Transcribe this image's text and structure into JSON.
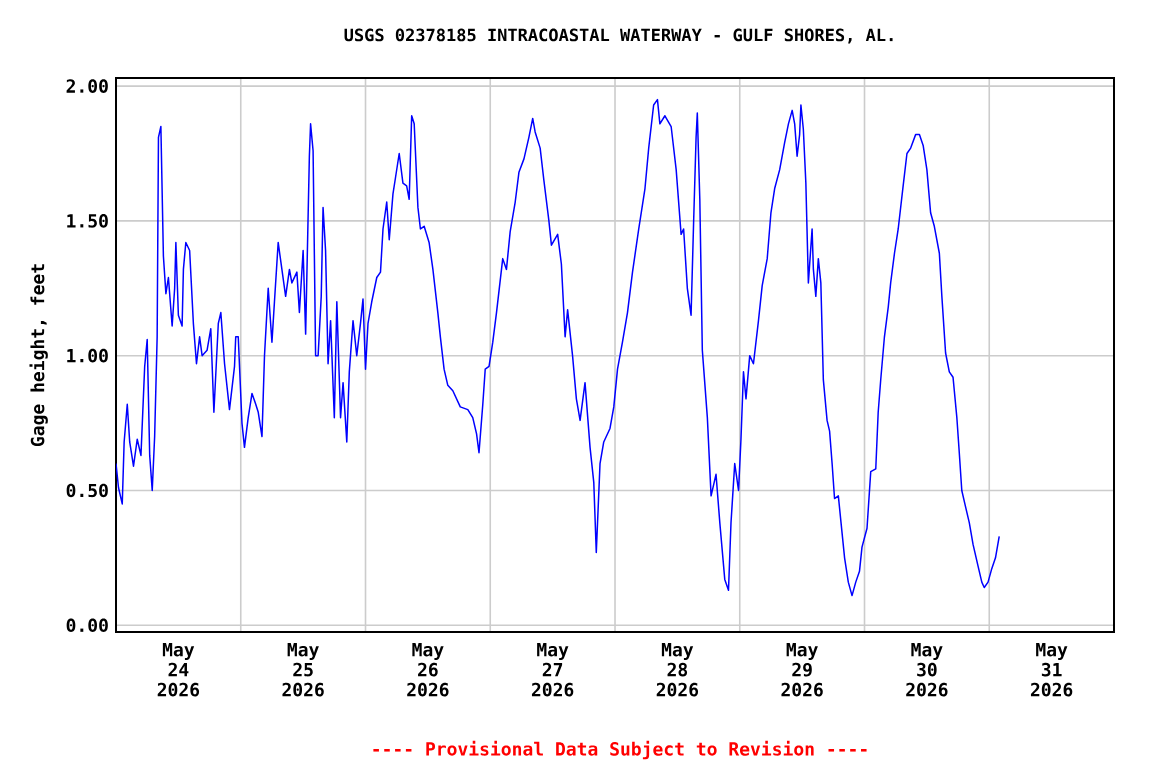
{
  "chart_data": {
    "type": "line",
    "title": "USGS 02378185 INTRACOASTAL WATERWAY - GULF SHORES, AL.",
    "ylabel": "Gage height, feet",
    "annotations": [
      "---- Provisional Data Subject to Revision ----"
    ],
    "xlim": [
      "2026-05-24",
      "2026-06-01"
    ],
    "xticks": [
      {
        "value": "2026-05-25",
        "label": null
      },
      {
        "value": "2026-05-26",
        "label": null
      },
      {
        "value": "2026-05-27",
        "label": null
      },
      {
        "value": "2026-05-28",
        "label": null
      },
      {
        "value": "2026-05-29",
        "label": null
      },
      {
        "value": "2026-05-30",
        "label": null
      },
      {
        "value": "2026-05-31",
        "label": null
      },
      {
        "value": "2026-05-24T12:00",
        "label": "May 24 2026"
      },
      {
        "value": "2026-05-25T12:00",
        "label": "May 25 2026"
      },
      {
        "value": "2026-05-26T12:00",
        "label": "May 26 2026"
      },
      {
        "value": "2026-05-27T12:00",
        "label": "May 27 2026"
      },
      {
        "value": "2026-05-28T12:00",
        "label": "May 28 2026"
      },
      {
        "value": "2026-05-29T12:00",
        "label": "May 29 2026"
      },
      {
        "value": "2026-05-30T12:00",
        "label": "May 30 2026"
      },
      {
        "value": "2026-05-31T12:00",
        "label": "May 31 2026"
      }
    ],
    "ylim": [
      -0.025,
      2.03
    ],
    "yticks": [
      {
        "value": 0,
        "label": "0.00"
      },
      {
        "value": 0.5,
        "label": "0.50"
      },
      {
        "value": 1,
        "label": "1.00"
      },
      {
        "value": 1.5,
        "label": "1.50"
      },
      {
        "value": 2,
        "label": "2.00"
      }
    ],
    "grid": true,
    "series": [
      {
        "color": "#0000ff",
        "x": [
          "2026-05-24T00:00",
          "2026-05-24T00:29",
          "2026-05-24T01:12",
          "2026-05-24T01:34",
          "2026-05-24T02:10",
          "2026-05-24T02:38",
          "2026-05-24T03:22",
          "2026-05-24T04:05",
          "2026-05-24T04:48",
          "2026-05-24T05:31",
          "2026-05-24T06:00",
          "2026-05-24T06:29",
          "2026-05-24T06:58",
          "2026-05-24T07:26",
          "2026-05-24T07:55",
          "2026-05-24T08:10",
          "2026-05-24T08:38",
          "2026-05-24T09:07",
          "2026-05-24T09:36",
          "2026-05-24T10:05",
          "2026-05-24T10:48",
          "2026-05-24T11:17",
          "2026-05-24T11:31",
          "2026-05-24T12:00",
          "2026-05-24T12:43",
          "2026-05-24T12:58",
          "2026-05-24T13:26",
          "2026-05-24T14:10",
          "2026-05-24T14:53",
          "2026-05-24T15:29",
          "2026-05-24T16:05",
          "2026-05-24T16:34",
          "2026-05-24T17:31",
          "2026-05-24T18:14",
          "2026-05-24T18:50",
          "2026-05-24T19:41",
          "2026-05-24T20:10",
          "2026-05-24T20:53",
          "2026-05-24T21:50",
          "2026-05-24T22:48",
          "2026-05-24T23:02",
          "2026-05-24T23:31",
          "2026-05-25T00:14",
          "2026-05-25T00:43",
          "2026-05-25T01:26",
          "2026-05-25T02:10",
          "2026-05-25T02:53",
          "2026-05-25T03:22",
          "2026-05-25T04:05",
          "2026-05-25T04:34",
          "2026-05-25T05:17",
          "2026-05-25T06:00",
          "2026-05-25T06:29",
          "2026-05-25T07:12",
          "2026-05-25T07:55",
          "2026-05-25T08:38",
          "2026-05-25T09:22",
          "2026-05-25T09:50",
          "2026-05-25T10:48",
          "2026-05-25T11:17",
          "2026-05-25T12:00",
          "2026-05-25T12:29",
          "2026-05-25T13:12",
          "2026-05-25T13:26",
          "2026-05-25T13:55",
          "2026-05-25T14:24",
          "2026-05-25T14:53",
          "2026-05-25T15:29",
          "2026-05-25T15:50",
          "2026-05-25T16:19",
          "2026-05-25T16:48",
          "2026-05-25T17:17",
          "2026-05-25T18:00",
          "2026-05-25T18:29",
          "2026-05-25T19:12",
          "2026-05-25T19:41",
          "2026-05-25T20:24",
          "2026-05-25T20:53",
          "2026-05-25T21:36",
          "2026-05-25T22:19",
          "2026-05-25T23:02",
          "2026-05-25T23:31",
          "2026-05-26T00:00",
          "2026-05-26T00:29",
          "2026-05-26T01:12",
          "2026-05-26T02:10",
          "2026-05-26T02:53",
          "2026-05-26T03:22",
          "2026-05-26T04:05",
          "2026-05-26T04:34",
          "2026-05-26T05:17",
          "2026-05-26T05:46",
          "2026-05-26T06:29",
          "2026-05-26T07:12",
          "2026-05-26T07:55",
          "2026-05-26T08:24",
          "2026-05-26T08:53",
          "2026-05-26T09:22",
          "2026-05-26T10:05",
          "2026-05-26T10:34",
          "2026-05-26T11:17",
          "2026-05-26T12:14",
          "2026-05-26T12:58",
          "2026-05-26T13:55",
          "2026-05-26T14:24",
          "2026-05-26T15:07",
          "2026-05-26T15:50",
          "2026-05-26T16:48",
          "2026-05-26T18:14",
          "2026-05-26T19:41",
          "2026-05-26T20:38",
          "2026-05-26T21:22",
          "2026-05-26T21:50",
          "2026-05-26T22:34",
          "2026-05-26T23:02",
          "2026-05-26T23:46",
          "2026-05-27T00:29",
          "2026-05-27T01:12",
          "2026-05-27T02:24",
          "2026-05-27T03:07",
          "2026-05-27T03:50",
          "2026-05-27T04:48",
          "2026-05-27T05:31",
          "2026-05-27T06:29",
          "2026-05-27T07:26",
          "2026-05-27T08:10",
          "2026-05-27T08:38",
          "2026-05-27T09:36",
          "2026-05-27T10:19",
          "2026-05-27T11:17",
          "2026-05-27T11:46",
          "2026-05-27T12:58",
          "2026-05-27T13:41",
          "2026-05-27T14:24",
          "2026-05-27T14:53",
          "2026-05-27T15:50",
          "2026-05-27T16:34",
          "2026-05-27T17:17",
          "2026-05-27T18:14",
          "2026-05-27T19:12",
          "2026-05-27T19:55",
          "2026-05-27T20:24",
          "2026-05-27T21:07",
          "2026-05-27T21:50",
          "2026-05-27T23:02",
          "2026-05-27T23:46",
          "2026-05-28T00:29",
          "2026-05-28T01:26",
          "2026-05-28T02:24",
          "2026-05-28T03:22",
          "2026-05-28T04:34",
          "2026-05-28T05:46",
          "2026-05-28T06:29",
          "2026-05-28T07:26",
          "2026-05-28T08:10",
          "2026-05-28T08:38",
          "2026-05-28T09:36",
          "2026-05-28T10:48",
          "2026-05-28T11:46",
          "2026-05-28T12:43",
          "2026-05-28T13:12",
          "2026-05-28T13:55",
          "2026-05-28T14:38",
          "2026-05-28T15:07",
          "2026-05-28T15:36",
          "2026-05-28T15:50",
          "2026-05-28T16:19",
          "2026-05-28T16:48",
          "2026-05-28T17:46",
          "2026-05-28T18:29",
          "2026-05-28T19:26",
          "2026-05-28T20:10",
          "2026-05-28T21:07",
          "2026-05-28T21:50",
          "2026-05-28T22:19",
          "2026-05-28T23:02",
          "2026-05-28T23:46",
          "2026-05-29T00:14",
          "2026-05-29T00:43",
          "2026-05-29T01:12",
          "2026-05-29T01:55",
          "2026-05-29T02:38",
          "2026-05-29T03:36",
          "2026-05-29T04:19",
          "2026-05-29T05:17",
          "2026-05-29T06:00",
          "2026-05-29T06:43",
          "2026-05-29T07:41",
          "2026-05-29T08:38",
          "2026-05-29T09:22",
          "2026-05-29T10:05",
          "2026-05-29T10:34",
          "2026-05-29T11:02",
          "2026-05-29T11:31",
          "2026-05-29T11:46",
          "2026-05-29T12:14",
          "2026-05-29T12:43",
          "2026-05-29T13:12",
          "2026-05-29T13:55",
          "2026-05-29T14:10",
          "2026-05-29T14:38",
          "2026-05-29T15:07",
          "2026-05-29T15:36",
          "2026-05-29T16:05",
          "2026-05-29T16:48",
          "2026-05-29T17:17",
          "2026-05-29T17:46",
          "2026-05-29T18:14",
          "2026-05-29T18:58",
          "2026-05-29T19:26",
          "2026-05-29T20:10",
          "2026-05-29T20:53",
          "2026-05-29T21:36",
          "2026-05-29T22:19",
          "2026-05-29T23:02",
          "2026-05-29T23:31",
          "2026-05-30T00:29",
          "2026-05-30T01:12",
          "2026-05-30T02:10",
          "2026-05-30T02:38",
          "2026-05-30T03:07",
          "2026-05-30T03:50",
          "2026-05-30T04:34",
          "2026-05-30T05:02",
          "2026-05-30T05:46",
          "2026-05-30T06:29",
          "2026-05-30T07:26",
          "2026-05-30T08:10",
          "2026-05-30T08:53",
          "2026-05-30T09:50",
          "2026-05-30T10:34",
          "2026-05-30T11:17",
          "2026-05-30T12:00",
          "2026-05-30T12:43",
          "2026-05-30T13:26",
          "2026-05-30T14:24",
          "2026-05-30T14:53",
          "2026-05-30T15:36",
          "2026-05-30T16:19",
          "2026-05-30T17:02",
          "2026-05-30T17:46",
          "2026-05-30T18:14",
          "2026-05-30T18:43",
          "2026-05-30T19:26",
          "2026-05-30T20:10",
          "2026-05-30T20:53",
          "2026-05-30T21:50",
          "2026-05-30T22:34",
          "2026-05-30T23:02",
          "2026-05-30T23:46",
          "2026-05-31T00:29",
          "2026-05-31T01:12",
          "2026-05-31T01:55"
        ],
        "values": [
          0.6,
          0.51,
          0.45,
          0.68,
          0.82,
          0.68,
          0.59,
          0.69,
          0.63,
          0.96,
          1.06,
          0.63,
          0.5,
          0.7,
          1.07,
          1.81,
          1.85,
          1.37,
          1.23,
          1.29,
          1.11,
          1.25,
          1.42,
          1.15,
          1.11,
          1.32,
          1.42,
          1.39,
          1.12,
          0.97,
          1.07,
          1.0,
          1.02,
          1.1,
          0.79,
          1.12,
          1.16,
          0.97,
          0.8,
          0.96,
          1.07,
          1.07,
          0.75,
          0.66,
          0.77,
          0.86,
          0.82,
          0.79,
          0.7,
          1.0,
          1.25,
          1.05,
          1.2,
          1.42,
          1.32,
          1.22,
          1.32,
          1.27,
          1.31,
          1.16,
          1.39,
          1.08,
          1.74,
          1.86,
          1.76,
          1.0,
          1.0,
          1.22,
          1.55,
          1.39,
          0.97,
          1.13,
          0.77,
          1.2,
          0.77,
          0.9,
          0.68,
          0.94,
          1.13,
          1.0,
          1.12,
          1.21,
          0.95,
          1.12,
          1.2,
          1.29,
          1.31,
          1.47,
          1.57,
          1.43,
          1.6,
          1.66,
          1.75,
          1.64,
          1.63,
          1.58,
          1.89,
          1.86,
          1.55,
          1.47,
          1.48,
          1.42,
          1.32,
          1.16,
          1.07,
          0.95,
          0.89,
          0.87,
          0.81,
          0.8,
          0.77,
          0.71,
          0.64,
          0.82,
          0.95,
          0.96,
          1.05,
          1.16,
          1.36,
          1.32,
          1.46,
          1.57,
          1.68,
          1.73,
          1.81,
          1.88,
          1.83,
          1.77,
          1.65,
          1.5,
          1.41,
          1.45,
          1.34,
          1.07,
          1.17,
          1.0,
          0.84,
          0.76,
          0.9,
          0.66,
          0.53,
          0.27,
          0.6,
          0.68,
          0.73,
          0.81,
          0.95,
          1.05,
          1.16,
          1.31,
          1.47,
          1.62,
          1.77,
          1.93,
          1.95,
          1.86,
          1.89,
          1.85,
          1.69,
          1.45,
          1.47,
          1.25,
          1.15,
          1.49,
          1.81,
          1.9,
          1.58,
          1.02,
          0.77,
          0.48,
          0.56,
          0.38,
          0.17,
          0.13,
          0.38,
          0.6,
          0.5,
          0.69,
          0.94,
          0.84,
          1.0,
          0.97,
          1.13,
          1.26,
          1.36,
          1.53,
          1.62,
          1.69,
          1.79,
          1.86,
          1.91,
          1.86,
          1.74,
          1.82,
          1.93,
          1.84,
          1.64,
          1.27,
          1.47,
          1.32,
          1.22,
          1.36,
          1.27,
          0.91,
          0.76,
          0.72,
          0.6,
          0.47,
          0.48,
          0.39,
          0.25,
          0.16,
          0.11,
          0.16,
          0.2,
          0.29,
          0.36,
          0.57,
          0.58,
          0.79,
          0.91,
          1.07,
          1.18,
          1.27,
          1.38,
          1.47,
          1.63,
          1.75,
          1.77,
          1.82,
          1.82,
          1.78,
          1.69,
          1.53,
          1.48,
          1.38,
          1.22,
          1.01,
          0.94,
          0.92,
          0.77,
          0.64,
          0.5,
          0.44,
          0.38,
          0.3,
          0.22,
          0.16,
          0.14,
          0.16,
          0.21,
          0.25,
          0.33
        ]
      }
    ]
  }
}
